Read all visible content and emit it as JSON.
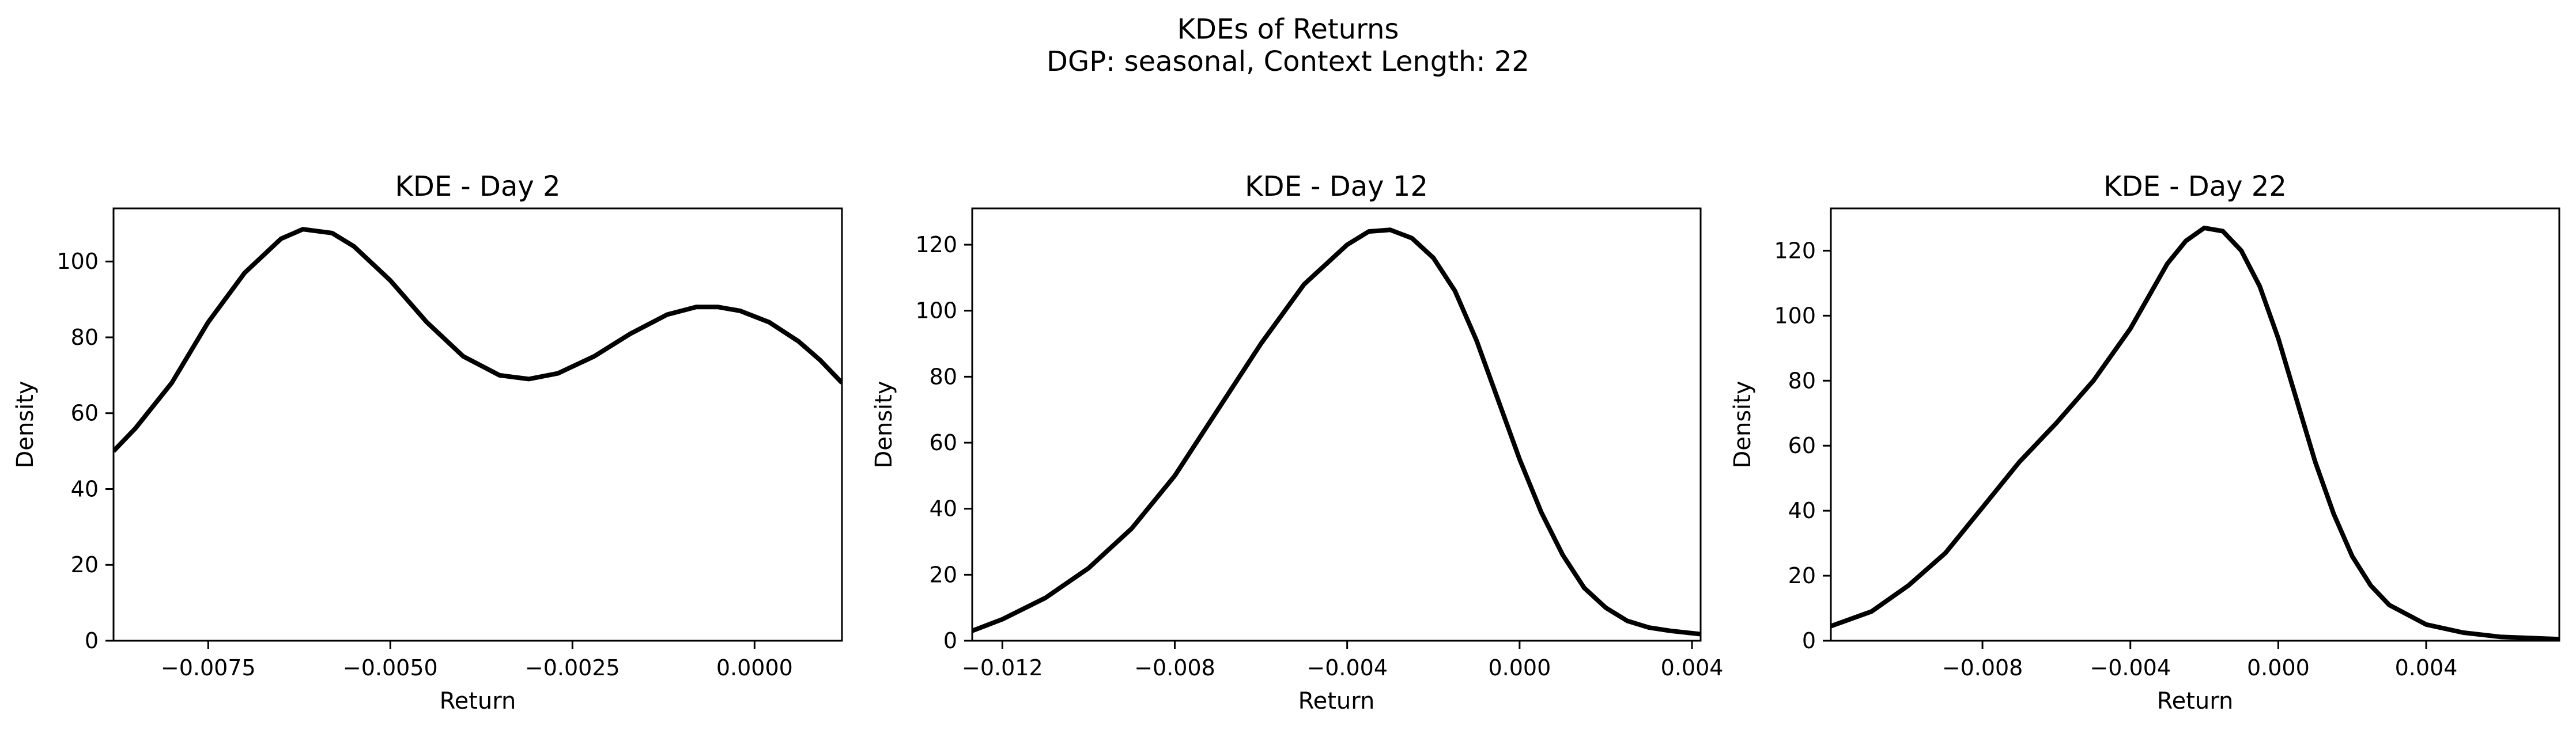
{
  "figure": {
    "title_line1": "KDEs of Returns",
    "title_line2": "DGP: seasonal, Context Length: 22"
  },
  "chart_data": [
    {
      "type": "line",
      "title": "KDE - Day 2",
      "xlabel": "Return",
      "ylabel": "Density",
      "xlim": [
        -0.0088,
        0.0012
      ],
      "ylim": [
        0,
        114
      ],
      "xticks": [
        -0.0075,
        -0.005,
        -0.0025,
        0.0
      ],
      "xtick_labels": [
        "−0.0075",
        "−0.0050",
        "−0.0025",
        "0.0000"
      ],
      "yticks": [
        0,
        20,
        40,
        60,
        80,
        100
      ],
      "ytick_labels": [
        "0",
        "20",
        "40",
        "60",
        "80",
        "100"
      ],
      "series": [
        {
          "color": "#000000",
          "x": [
            -0.0088,
            -0.0085,
            -0.008,
            -0.0075,
            -0.007,
            -0.0065,
            -0.0062,
            -0.0058,
            -0.0055,
            -0.005,
            -0.0045,
            -0.004,
            -0.0035,
            -0.0031,
            -0.0027,
            -0.0022,
            -0.0017,
            -0.0012,
            -0.0008,
            -0.0005,
            -0.0002,
            0.0002,
            0.0006,
            0.0009,
            0.0012
          ],
          "y": [
            50,
            56,
            68,
            84,
            97,
            106,
            108.5,
            107.5,
            104,
            95,
            84,
            75,
            70,
            69,
            70.5,
            75,
            81,
            86,
            88,
            88,
            87,
            84,
            79,
            74,
            68
          ]
        }
      ]
    },
    {
      "type": "line",
      "title": "KDE - Day 12",
      "xlabel": "Return",
      "ylabel": "Density",
      "xlim": [
        -0.0127,
        0.0042
      ],
      "ylim": [
        0,
        131
      ],
      "xticks": [
        -0.012,
        -0.008,
        -0.004,
        0.0,
        0.004
      ],
      "xtick_labels": [
        "−0.012",
        "−0.008",
        "−0.004",
        "0.000",
        "0.004"
      ],
      "yticks": [
        0,
        20,
        40,
        60,
        80,
        100,
        120
      ],
      "ytick_labels": [
        "0",
        "20",
        "40",
        "60",
        "80",
        "100",
        "120"
      ],
      "series": [
        {
          "color": "#000000",
          "x": [
            -0.0127,
            -0.012,
            -0.011,
            -0.01,
            -0.009,
            -0.008,
            -0.007,
            -0.006,
            -0.005,
            -0.004,
            -0.0035,
            -0.003,
            -0.0025,
            -0.002,
            -0.0015,
            -0.001,
            -0.0005,
            0.0,
            0.0005,
            0.001,
            0.0015,
            0.002,
            0.0025,
            0.003,
            0.0035,
            0.0042
          ],
          "y": [
            3,
            6.5,
            13,
            22,
            34,
            50,
            70,
            90,
            108,
            120,
            124,
            124.5,
            122,
            116,
            106,
            91,
            73,
            55,
            39,
            26,
            16,
            10,
            6,
            4,
            3,
            2
          ]
        }
      ]
    },
    {
      "type": "line",
      "title": "KDE - Day 22",
      "xlabel": "Return",
      "ylabel": "Density",
      "xlim": [
        -0.0121,
        0.0076
      ],
      "ylim": [
        0,
        133
      ],
      "xticks": [
        -0.008,
        -0.004,
        0.0,
        0.004
      ],
      "xtick_labels": [
        "−0.008",
        "−0.004",
        "0.000",
        "0.004"
      ],
      "yticks": [
        0,
        20,
        40,
        60,
        80,
        100,
        120
      ],
      "ytick_labels": [
        "0",
        "20",
        "40",
        "60",
        "80",
        "100",
        "120"
      ],
      "series": [
        {
          "color": "#000000",
          "x": [
            -0.0121,
            -0.011,
            -0.01,
            -0.009,
            -0.008,
            -0.007,
            -0.006,
            -0.005,
            -0.004,
            -0.0035,
            -0.003,
            -0.0025,
            -0.002,
            -0.0015,
            -0.001,
            -0.0005,
            0.0,
            0.0005,
            0.001,
            0.0015,
            0.002,
            0.0025,
            0.003,
            0.004,
            0.005,
            0.006,
            0.0076
          ],
          "y": [
            4.5,
            9,
            17,
            27,
            41,
            55,
            67,
            80,
            96,
            106,
            116,
            123,
            127,
            126,
            120,
            109,
            93,
            74,
            55,
            39,
            26,
            17,
            11,
            5,
            2.5,
            1.2,
            0.5
          ]
        }
      ]
    }
  ]
}
